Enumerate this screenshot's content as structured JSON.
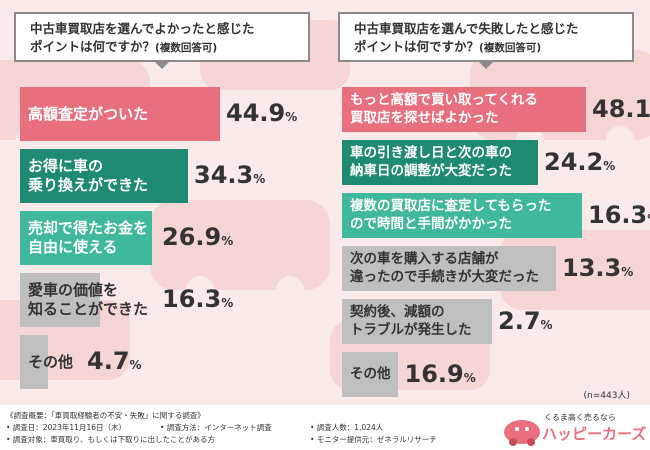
{
  "panels": [
    {
      "title_line1": "中古車買取店を選んでよかったと感じた",
      "title_line2": "ポイントは何ですか？",
      "title_sub": "(複数回答可)",
      "items": [
        {
          "label_lines": [
            "高額査定がついた"
          ],
          "value_main": "44.",
          "value_dec": "9",
          "pct": "%",
          "value": 44.9,
          "color": "#e8707e",
          "text": "light"
        },
        {
          "label_lines": [
            "お得に車の",
            "乗り換えができた"
          ],
          "value_main": "34.",
          "value_dec": "3",
          "pct": "%",
          "value": 34.3,
          "color": "#1e8a72",
          "text": "light"
        },
        {
          "label_lines": [
            "売却で得たお金を",
            "自由に使える"
          ],
          "value_main": "26.",
          "value_dec": "9",
          "pct": "%",
          "value": 26.9,
          "color": "#3fb89b",
          "text": "light"
        },
        {
          "label_lines": [
            "愛車の価値を",
            "知ることができた"
          ],
          "value_main": "16.",
          "value_dec": "3",
          "pct": "%",
          "value": 16.3,
          "color": "#bfbfbf",
          "text": "dark"
        },
        {
          "label_lines": [
            "その他"
          ],
          "value_main": "4.",
          "value_dec": "7",
          "pct": "%",
          "value": 4.7,
          "color": "#bfbfbf",
          "text": "dark"
        }
      ]
    },
    {
      "title_line1": "中古車買取店を選んで失敗したと感じた",
      "title_line2": "ポイントは何ですか？",
      "title_sub": "(複数回答可)",
      "items": [
        {
          "label_lines": [
            "もっと高額で買い取ってくれる",
            "買取店を探せばよかった"
          ],
          "value_main": "48.",
          "value_dec": "1",
          "pct": "%",
          "value": 48.1,
          "color": "#e8707e",
          "text": "light"
        },
        {
          "label_lines": [
            "車の引き渡し日と次の車の",
            "納車日の調整が大変だった"
          ],
          "value_main": "24.",
          "value_dec": "2",
          "pct": "%",
          "value": 24.2,
          "color": "#1e8a72",
          "text": "light"
        },
        {
          "label_lines": [
            "複数の買取店に査定してもらった",
            "ので時間と手間がかかった"
          ],
          "value_main": "16.",
          "value_dec": "3",
          "pct": "%",
          "value": 16.3,
          "color": "#3fb89b",
          "text": "light"
        },
        {
          "label_lines": [
            "次の車を購入する店舗が",
            "違ったので手続きが大変だった"
          ],
          "value_main": "13.",
          "value_dec": "3",
          "pct": "%",
          "value": 13.3,
          "color": "#bfbfbf",
          "text": "dark"
        },
        {
          "label_lines": [
            "契約後、減額の",
            "トラブルが発生した"
          ],
          "value_main": "2.",
          "value_dec": "7",
          "pct": "%",
          "value": 2.7,
          "color": "#bfbfbf",
          "text": "dark"
        },
        {
          "label_lines": [
            "その他"
          ],
          "value_main": "16.",
          "value_dec": "9",
          "pct": "%",
          "value": 16.9,
          "color": "#bfbfbf",
          "text": "dark"
        }
      ]
    }
  ],
  "sample_size": "(n=443人)",
  "footer": {
    "survey_overview": "《調査概要：「車買取経験者の不安・失敗」に関する調査》",
    "survey_date": "• 調査日：2023年11月16日（木）",
    "survey_method": "• 調査方法：インターネット調査",
    "respondents": "• 調査人数：1,024人",
    "survey_target": "• 調査対象：車買取り、もしくは下取りに出したことがある方",
    "monitor_provider": "• モニター提供元：ゼネラルリサーチ",
    "brand_tagline": "くるま高く売るなら",
    "brand_name": "ハッピーカーズ"
  },
  "chart_data": [
    {
      "type": "bar",
      "title": "中古車買取店を選んでよかったと感じたポイントは何ですか？(複数回答可)",
      "categories": [
        "高額査定がついた",
        "お得に車の乗り換えができた",
        "売却で得たお金を自由に使える",
        "愛車の価値を知ることができた",
        "その他"
      ],
      "values": [
        44.9,
        34.3,
        26.9,
        16.3,
        4.7
      ],
      "unit": "%"
    },
    {
      "type": "bar",
      "title": "中古車買取店を選んで失敗したと感じたポイントは何ですか？(複数回答可)",
      "categories": [
        "もっと高額で買い取ってくれる買取店を探せばよかった",
        "車の引き渡し日と次の車の納車日の調整が大変だった",
        "複数の買取店に査定してもらったので時間と手間がかかった",
        "次の車を購入する店舗が違ったので手続きが大変だった",
        "契約後、減額のトラブルが発生した",
        "その他"
      ],
      "values": [
        48.1,
        24.2,
        16.3,
        13.3,
        2.7,
        16.9
      ],
      "unit": "%"
    }
  ]
}
